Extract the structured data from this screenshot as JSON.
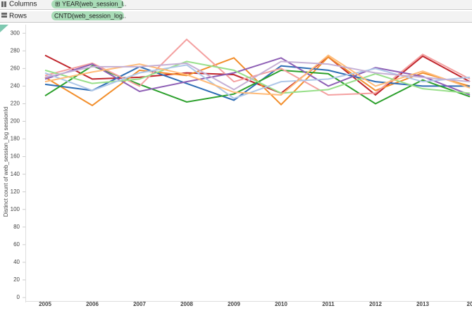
{
  "shelves": {
    "columns_label": "Columns",
    "columns_pill": "YEAR(web_session_l..",
    "rows_label": "Rows",
    "rows_pill": "CNTD(web_session_log.."
  },
  "chart_data": {
    "type": "line",
    "y_label": "Distinct count of web_session_log sessionId",
    "categories": [
      "2005",
      "2006",
      "2007",
      "2008",
      "2009",
      "2010",
      "2011",
      "2012",
      "2013",
      "20"
    ],
    "ylim": [
      -4,
      309
    ],
    "yticks": [
      0,
      20,
      40,
      60,
      80,
      100,
      120,
      140,
      160,
      180,
      200,
      220,
      240,
      260,
      280,
      300
    ],
    "grid": false,
    "series": [
      {
        "color": "#c0262d",
        "values": [
          275,
          248,
          250,
          255,
          253,
          232,
          273,
          230,
          274,
          245
        ]
      },
      {
        "color": "#f28e2b",
        "values": [
          250,
          218,
          258,
          252,
          272,
          219,
          273,
          235,
          255,
          240
        ]
      },
      {
        "color": "#2e6db4",
        "values": [
          242,
          235,
          262,
          243,
          224,
          263,
          258,
          245,
          240,
          240
        ]
      },
      {
        "color": "#2ca02c",
        "values": [
          229,
          263,
          242,
          222,
          231,
          258,
          254,
          220,
          247,
          228
        ]
      },
      {
        "color": "#f4a0a0",
        "values": [
          252,
          266,
          240,
          293,
          245,
          260,
          230,
          232,
          276,
          248
        ]
      },
      {
        "color": "#8e5fb5",
        "values": [
          248,
          265,
          234,
          245,
          255,
          272,
          240,
          261,
          251,
          230
        ]
      },
      {
        "color": "#98df8a",
        "values": [
          258,
          243,
          248,
          268,
          258,
          232,
          236,
          254,
          237,
          232
        ]
      },
      {
        "color": "#aec7e8",
        "values": [
          255,
          235,
          255,
          264,
          226,
          245,
          248,
          260,
          245,
          250
        ]
      },
      {
        "color": "#ffbb78",
        "values": [
          245,
          256,
          265,
          253,
          233,
          230,
          275,
          240,
          257,
          238
        ]
      },
      {
        "color": "#c5b0d5",
        "values": [
          250,
          262,
          262,
          266,
          236,
          268,
          265,
          255,
          250,
          245
        ]
      }
    ]
  }
}
